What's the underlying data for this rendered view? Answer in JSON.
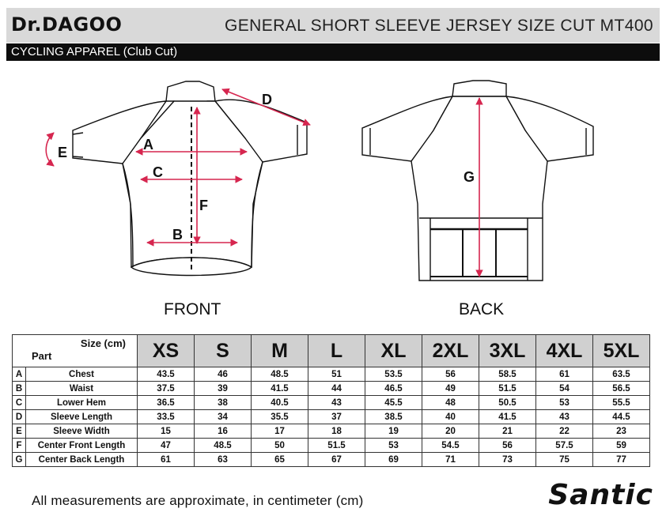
{
  "header": {
    "brand": "Dr.DAGOO",
    "title": "GENERAL SHORT SLEEVE JERSEY SIZE CUT MT400",
    "subtitle": "CYCLING APPAREL (Club Cut)"
  },
  "figure": {
    "front_label": "FRONT",
    "back_label": "BACK",
    "markers": {
      "A": "A",
      "B": "B",
      "C": "C",
      "D": "D",
      "E": "E",
      "F": "F",
      "G": "G"
    }
  },
  "table": {
    "corner_size": "Size (cm)",
    "corner_part": "Part",
    "sizes": [
      "XS",
      "S",
      "M",
      "L",
      "XL",
      "2XL",
      "3XL",
      "4XL",
      "5XL"
    ],
    "rows": [
      {
        "code": "A",
        "part": "Chest",
        "values": [
          "43.5",
          "46",
          "48.5",
          "51",
          "53.5",
          "56",
          "58.5",
          "61",
          "63.5"
        ]
      },
      {
        "code": "B",
        "part": "Waist",
        "values": [
          "37.5",
          "39",
          "41.5",
          "44",
          "46.5",
          "49",
          "51.5",
          "54",
          "56.5"
        ]
      },
      {
        "code": "C",
        "part": "Lower Hem",
        "values": [
          "36.5",
          "38",
          "40.5",
          "43",
          "45.5",
          "48",
          "50.5",
          "53",
          "55.5"
        ]
      },
      {
        "code": "D",
        "part": "Sleeve Length",
        "values": [
          "33.5",
          "34",
          "35.5",
          "37",
          "38.5",
          "40",
          "41.5",
          "43",
          "44.5"
        ]
      },
      {
        "code": "E",
        "part": "Sleeve Width",
        "values": [
          "15",
          "16",
          "17",
          "18",
          "19",
          "20",
          "21",
          "22",
          "23"
        ]
      },
      {
        "code": "F",
        "part": "Center Front Length",
        "values": [
          "47",
          "48.5",
          "50",
          "51.5",
          "53",
          "54.5",
          "56",
          "57.5",
          "59"
        ]
      },
      {
        "code": "G",
        "part": "Center Back Length",
        "values": [
          "61",
          "63",
          "65",
          "67",
          "69",
          "71",
          "73",
          "75",
          "77"
        ]
      }
    ]
  },
  "footer": {
    "note": "All  measurements  are  approximate, in centimeter (cm)",
    "logo": "Santic"
  },
  "colors": {
    "arrow": "#d6264f",
    "header_bg": "#d9d9d9",
    "subheader_bg": "#0d0d0d",
    "size_head_bg": "#d0d0d0"
  }
}
